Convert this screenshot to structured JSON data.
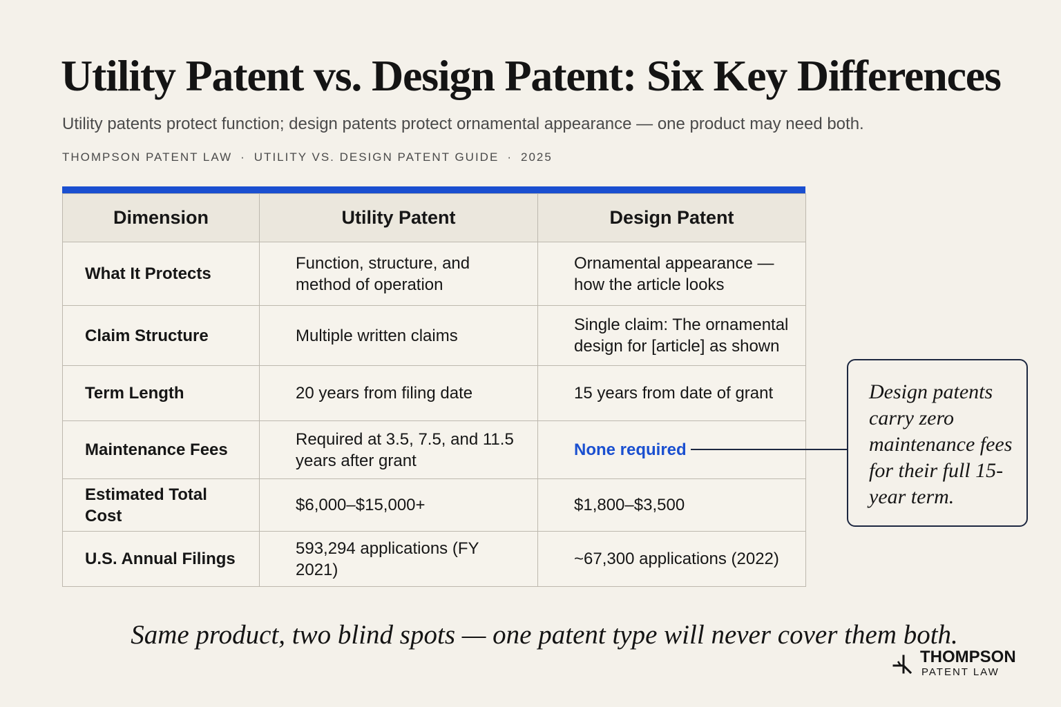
{
  "header": {
    "title": "Utility Patent vs. Design Patent: Six Key Differences",
    "subtitle": "Utility patents protect function; design patents protect ornamental appearance — one product may need both.",
    "meta": [
      "THOMPSON PATENT LAW",
      "UTILITY VS. DESIGN PATENT GUIDE",
      "2025"
    ],
    "meta_separator": "·"
  },
  "table": {
    "accent_color": "#1a4fd0",
    "highlight_color": "#1a4fd0",
    "columns": [
      "Dimension",
      "Utility Patent",
      "Design Patent"
    ],
    "rows": [
      {
        "dimension": "What It Protects",
        "utility": "Function, structure, and method of operation",
        "design": "Ornamental appearance — how the article looks",
        "height": 92
      },
      {
        "dimension": "Claim Structure",
        "utility": "Multiple written claims",
        "design": "Single claim: The ornamental design for [article] as shown",
        "height": 87
      },
      {
        "dimension": "Term Length",
        "utility": "20 years from filing date",
        "design": "15 years from date of grant",
        "height": 80
      },
      {
        "dimension": "Maintenance Fees",
        "utility": "Required at 3.5, 7.5, and 11.5 years after grant",
        "design": "None required",
        "highlight": true,
        "height": 84
      },
      {
        "dimension": "Estimated Total Cost",
        "utility": "$6,000–$15,000+",
        "design": "$1,800–$3,500",
        "height": 76
      },
      {
        "dimension": "U.S. Annual Filings",
        "utility": "593,294 applications (FY 2021)",
        "design": "~67,300 applications (2022)",
        "height": 80
      }
    ]
  },
  "callout": {
    "text": "Design patents carry zero maintenance fees for their full 15-year term."
  },
  "tagline": "Same product, two blind spots — one patent type will never cover them both.",
  "logo": {
    "name": "THOMPSON",
    "subtitle": "PATENT LAW",
    "icon": "patent-mark-icon"
  }
}
